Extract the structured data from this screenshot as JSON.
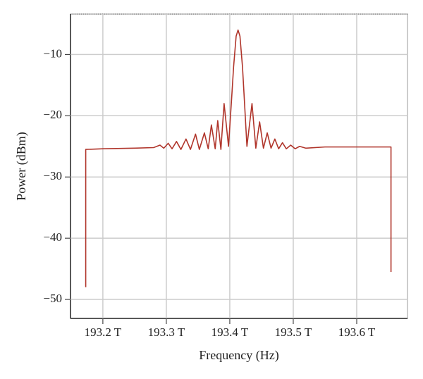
{
  "chart_data": {
    "type": "line",
    "x_label": "Frequency (Hz)",
    "y_label": "Power (dBm)",
    "xlim": [
      193.149,
      193.68
    ],
    "ylim": [
      -53.1,
      -3.4
    ],
    "xticks": [
      {
        "value": 193.2,
        "label": "193.2 T"
      },
      {
        "value": 193.3,
        "label": "193.3 T"
      },
      {
        "value": 193.4,
        "label": "193.4 T"
      },
      {
        "value": 193.5,
        "label": "193.5 T"
      },
      {
        "value": 193.6,
        "label": "193.6 T"
      }
    ],
    "yticks": [
      {
        "value": -10,
        "label": "−10"
      },
      {
        "value": -20,
        "label": "−20"
      },
      {
        "value": -30,
        "label": "−30"
      },
      {
        "value": -40,
        "label": "−40"
      },
      {
        "value": -50,
        "label": "−50"
      }
    ],
    "grid": true,
    "series": [
      {
        "color": "#b0352b",
        "x": [
          193.173,
          193.173,
          193.2,
          193.25,
          193.28,
          193.29,
          193.296,
          193.303,
          193.309,
          193.316,
          193.323,
          193.331,
          193.338,
          193.346,
          193.352,
          193.36,
          193.366,
          193.371,
          193.377,
          193.381,
          193.386,
          193.391,
          193.398,
          193.403,
          193.406,
          193.41,
          193.413,
          193.416,
          193.42,
          193.423,
          193.427,
          193.435,
          193.441,
          193.447,
          193.453,
          193.459,
          193.465,
          193.471,
          193.477,
          193.483,
          193.489,
          193.496,
          193.503,
          193.51,
          193.52,
          193.55,
          193.6,
          193.654,
          193.654
        ],
        "values": [
          -48,
          -25.5,
          -25.4,
          -25.3,
          -25.2,
          -24.8,
          -25.3,
          -24.5,
          -25.4,
          -24.2,
          -25.5,
          -23.8,
          -25.5,
          -23.0,
          -25.5,
          -22.8,
          -25.4,
          -21.5,
          -25.4,
          -20.8,
          -25.5,
          -18.0,
          -25.0,
          -17.0,
          -12,
          -7,
          -6.0,
          -7,
          -12,
          -17.5,
          -25.0,
          -18.0,
          -25.3,
          -21.0,
          -25.3,
          -22.8,
          -25.3,
          -23.8,
          -25.4,
          -24.4,
          -25.4,
          -24.8,
          -25.4,
          -25.0,
          -25.3,
          -25.1,
          -25.1,
          -25.1,
          -45.5
        ]
      }
    ]
  }
}
